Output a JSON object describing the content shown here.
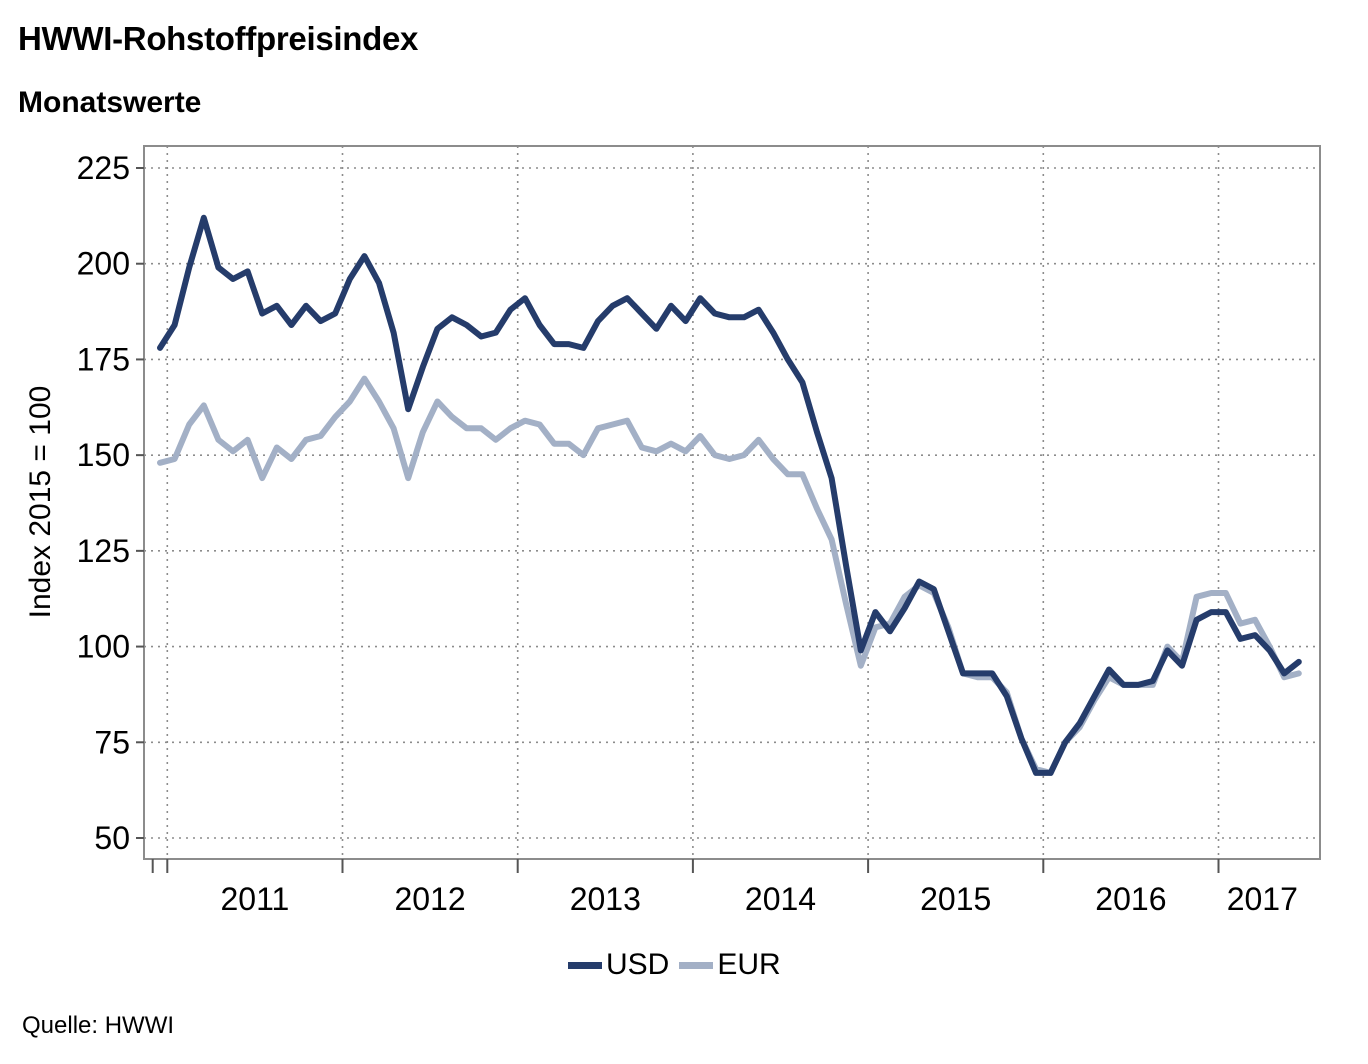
{
  "header": {
    "title": "HWWI-Rohstoffpreisindex",
    "subtitle": "Monatswerte"
  },
  "footer": {
    "source": "Quelle: HWWI"
  },
  "colors": {
    "usd": "#253c6b",
    "eur": "#a3b0c6",
    "grid": "#8c8c8c",
    "frame": "#8c8c8c"
  },
  "legend": {
    "items": [
      {
        "label": "USD",
        "color": "#253c6b"
      },
      {
        "label": "EUR",
        "color": "#a3b0c6"
      }
    ]
  },
  "chart_data": {
    "type": "line",
    "title": "HWWI-Rohstoffpreisindex",
    "subtitle": "Monatswerte",
    "xlabel": "",
    "ylabel": "Index 2015 = 100",
    "ylim": [
      50,
      225
    ],
    "yticks": [
      50,
      75,
      100,
      125,
      150,
      175,
      200,
      225
    ],
    "x_start": "2010-12",
    "x_end": "2017-06",
    "year_ticks": [
      "2011",
      "2012",
      "2013",
      "2014",
      "2015",
      "2016",
      "2017"
    ],
    "grid": true,
    "legend_position": "bottom",
    "series": [
      {
        "name": "USD",
        "color": "#253c6b",
        "values": [
          178,
          184,
          199,
          212,
          199,
          196,
          198,
          187,
          189,
          184,
          189,
          185,
          187,
          196,
          202,
          195,
          182,
          162,
          173,
          183,
          186,
          184,
          181,
          182,
          188,
          191,
          184,
          179,
          179,
          178,
          185,
          189,
          191,
          187,
          183,
          189,
          185,
          191,
          187,
          186,
          186,
          188,
          182,
          175,
          169,
          156,
          144,
          121,
          99,
          109,
          104,
          110,
          117,
          115,
          104,
          93,
          93,
          93,
          87,
          76,
          67,
          67,
          75,
          80,
          87,
          94,
          90,
          90,
          91,
          99,
          95,
          107,
          109,
          109,
          102,
          103,
          99,
          93,
          96
        ]
      },
      {
        "name": "EUR",
        "color": "#a3b0c6",
        "values": [
          148,
          149,
          158,
          163,
          154,
          151,
          154,
          144,
          152,
          149,
          154,
          155,
          160,
          164,
          170,
          164,
          157,
          144,
          156,
          164,
          160,
          157,
          157,
          154,
          157,
          159,
          158,
          153,
          153,
          150,
          157,
          158,
          159,
          152,
          151,
          153,
          151,
          155,
          150,
          149,
          150,
          154,
          149,
          145,
          145,
          136,
          128,
          111,
          95,
          105,
          106,
          113,
          116,
          114,
          105,
          93,
          92,
          92,
          88,
          76,
          68,
          67,
          75,
          79,
          86,
          92,
          90,
          90,
          90,
          100,
          96,
          113,
          114,
          114,
          106,
          107,
          100,
          92,
          93
        ]
      }
    ]
  }
}
